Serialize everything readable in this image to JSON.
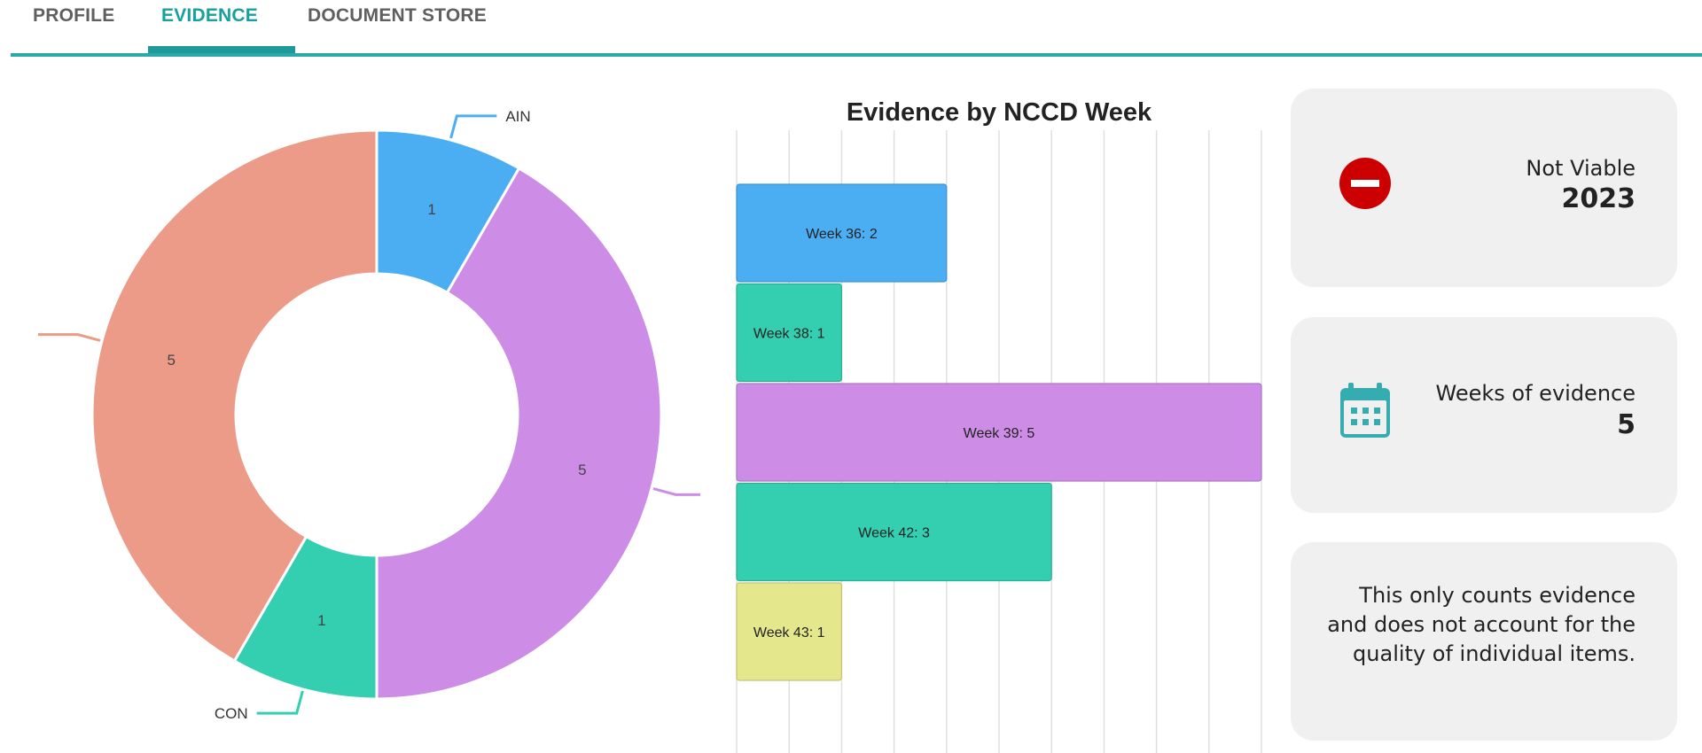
{
  "tabs": [
    {
      "label": "PROFILE",
      "active": false
    },
    {
      "label": "EVIDENCE",
      "active": true
    },
    {
      "label": "DOCUMENT STORE",
      "active": false
    }
  ],
  "accent_color": "#2aa9a9",
  "chart_data": [
    {
      "type": "pie",
      "variant": "doughnut",
      "start": "top, clockwise",
      "slices": [
        {
          "label": "AIN",
          "value": 1,
          "color": "#4baef3"
        },
        {
          "label": "",
          "value": 5,
          "color": "#cd8de6"
        },
        {
          "label": "CON",
          "value": 1,
          "color": "#33cfb0"
        },
        {
          "label": "",
          "value": 5,
          "color": "#ec9b88"
        }
      ],
      "data_labels": true
    },
    {
      "type": "bar",
      "orientation": "horizontal",
      "title": "Evidence by NCCD Week",
      "categories": [
        "Week 36",
        "Week 38",
        "Week 39",
        "Week 42",
        "Week 43"
      ],
      "values": [
        2,
        1,
        5,
        3,
        1
      ],
      "bar_labels": [
        "Week 36: 2",
        "Week 38: 1",
        "Week 39: 5",
        "Week 42: 3",
        "Week 43: 1"
      ],
      "colors": [
        "#4baef3",
        "#33cfb0",
        "#cd8de6",
        "#33cfb0",
        "#e5e78d"
      ],
      "xlim": [
        0,
        5
      ],
      "x_grid_step": 0.5,
      "grid": true,
      "axis_tick_labels": false
    }
  ],
  "cards": {
    "status": {
      "label": "Not Viable",
      "value": "2023",
      "icon": "no-entry-icon",
      "icon_color": "#cc0000"
    },
    "weeks": {
      "label": "Weeks of evidence",
      "value": "5",
      "icon": "calendar-icon",
      "icon_color": "#35adb0"
    },
    "note": {
      "text": "This only counts evidence and does not account for the quality of individual items."
    }
  }
}
